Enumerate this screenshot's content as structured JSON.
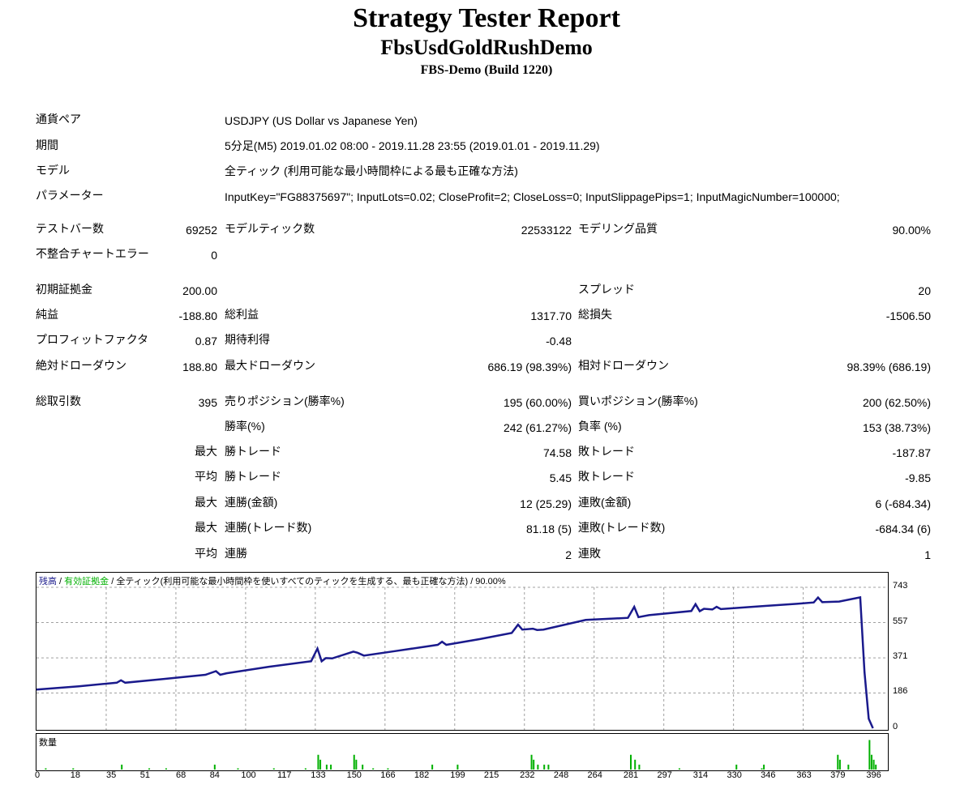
{
  "header": {
    "title": "Strategy Tester Report",
    "ea_name": "FbsUsdGoldRushDemo",
    "server": "FBS-Demo (Build 1220)"
  },
  "info": {
    "pair_label": "通貨ペア",
    "pair_value": "USDJPY (US Dollar vs Japanese Yen)",
    "period_label": "期間",
    "period_value": "5分足(M5) 2019.01.02 08:00 - 2019.11.28 23:55 (2019.01.01 - 2019.11.29)",
    "model_label": "モデル",
    "model_value": "全ティック (利用可能な最小時間枠による最も正確な方法)",
    "params_label": "パラメーター",
    "params_value": "InputKey=\"FG88375697\"; InputLots=0.02; CloseProfit=2; CloseLoss=0; InputSlippagePips=1; InputMagicNumber=100000;"
  },
  "stats": {
    "bars_label": "テストバー数",
    "bars_value": "69252",
    "ticks_label": "モデルティック数",
    "ticks_value": "22533122",
    "quality_label": "モデリング品質",
    "quality_value": "90.00%",
    "errors_label": "不整合チャートエラー",
    "errors_value": "0",
    "deposit_label": "初期証拠金",
    "deposit_value": "200.00",
    "spread_label": "スプレッド",
    "spread_value": "20",
    "net_label": "純益",
    "net_value": "-188.80",
    "gross_profit_label": "総利益",
    "gross_profit_value": "1317.70",
    "gross_loss_label": "総損失",
    "gross_loss_value": "-1506.50",
    "pf_label": "プロフィットファクタ",
    "pf_value": "0.87",
    "expected_label": "期待利得",
    "expected_value": "-0.48",
    "abs_dd_label": "絶対ドローダウン",
    "abs_dd_value": "188.80",
    "max_dd_label": "最大ドローダウン",
    "max_dd_value": "686.19 (98.39%)",
    "rel_dd_label": "相対ドローダウン",
    "rel_dd_value": "98.39% (686.19)",
    "trades_label": "総取引数",
    "trades_value": "395",
    "short_label": "売りポジション(勝率%)",
    "short_value": "195 (60.00%)",
    "long_label": "買いポジション(勝率%)",
    "long_value": "200 (62.50%)",
    "win_rate_label": "勝率(%)",
    "win_rate_value": "242 (61.27%)",
    "loss_rate_label": "負率 (%)",
    "loss_rate_value": "153 (38.73%)",
    "max_label": "最大",
    "avg_label": "平均",
    "win_trade_label": "勝トレード",
    "loss_trade_label": "敗トレード",
    "max_win_value": "74.58",
    "max_loss_value": "-187.87",
    "avg_win_value": "5.45",
    "avg_loss_value": "-9.85",
    "consec_win_amt_label": "連勝(金額)",
    "consec_win_amt_value": "12 (25.29)",
    "consec_loss_amt_label": "連敗(金額)",
    "consec_loss_amt_value": "6 (-684.34)",
    "consec_win_cnt_label": "連勝(トレード数)",
    "consec_win_cnt_value": "81.18 (5)",
    "consec_loss_cnt_label": "連敗(トレード数)",
    "consec_loss_cnt_value": "-684.34 (6)",
    "consec_win_label": "連勝",
    "consec_win_value": "2",
    "consec_loss_label": "連敗",
    "consec_loss_value": "1"
  },
  "chart": {
    "legend_balance": "残高",
    "legend_sep1": " / ",
    "legend_equity": "有効証拠金",
    "legend_rest": " / 全ティック(利用可能な最小時間枠を使いすべてのティックを生成する、最も正確な方法) / 90.00%",
    "volume_label": "数量",
    "colors": {
      "balance": "#1a1a8c",
      "equity": "#00b000",
      "volume": "#00b000",
      "grid": "#a0a0a0"
    },
    "y_ticks": [
      "743",
      "557",
      "371",
      "186",
      "0"
    ],
    "x_ticks": [
      "0",
      "18",
      "35",
      "51",
      "68",
      "84",
      "100",
      "117",
      "133",
      "150",
      "166",
      "182",
      "199",
      "215",
      "232",
      "248",
      "264",
      "281",
      "297",
      "314",
      "330",
      "346",
      "363",
      "379",
      "396"
    ]
  },
  "chart_data": {
    "type": "line",
    "title": "",
    "xlabel": "",
    "ylabel": "",
    "ylim": [
      0,
      743
    ],
    "xlim": [
      0,
      400
    ],
    "grid": true,
    "series": [
      {
        "name": "残高",
        "x": [
          0,
          20,
          38,
          40,
          42,
          60,
          80,
          85,
          87,
          90,
          110,
          130,
          133,
          135,
          137,
          140,
          150,
          152,
          155,
          170,
          190,
          192,
          194,
          210,
          225,
          228,
          230,
          235,
          237,
          240,
          260,
          280,
          283,
          285,
          290,
          310,
          312,
          314,
          316,
          320,
          322,
          324,
          345,
          360,
          368,
          370,
          372,
          380,
          390,
          392,
          394,
          396
        ],
        "y": [
          204,
          221,
          240,
          253,
          240,
          259,
          282,
          301,
          282,
          290,
          324,
          353,
          420,
          353,
          370,
          368,
          404,
          398,
          383,
          407,
          440,
          456,
          440,
          470,
          502,
          546,
          520,
          525,
          518,
          520,
          571,
          582,
          640,
          586,
          596,
          618,
          654,
          617,
          630,
          626,
          640,
          628,
          645,
          656,
          663,
          689,
          665,
          668,
          690,
          295,
          50,
          0
        ]
      }
    ],
    "volume": {
      "x": [
        4,
        17,
        40,
        53,
        61,
        84,
        95,
        112,
        127,
        133,
        134,
        137,
        139,
        150,
        151,
        154,
        159,
        166,
        187,
        199,
        234,
        235,
        237,
        240,
        242,
        281,
        283,
        285,
        304,
        331,
        343,
        344,
        379,
        380,
        384,
        394,
        395,
        396,
        397
      ],
      "y": [
        2,
        2,
        8,
        2,
        2,
        8,
        2,
        2,
        2,
        24,
        16,
        8,
        8,
        24,
        16,
        8,
        2,
        2,
        8,
        8,
        24,
        16,
        8,
        8,
        8,
        24,
        16,
        8,
        2,
        8,
        2,
        8,
        24,
        16,
        8,
        48,
        24,
        16,
        8
      ]
    }
  }
}
